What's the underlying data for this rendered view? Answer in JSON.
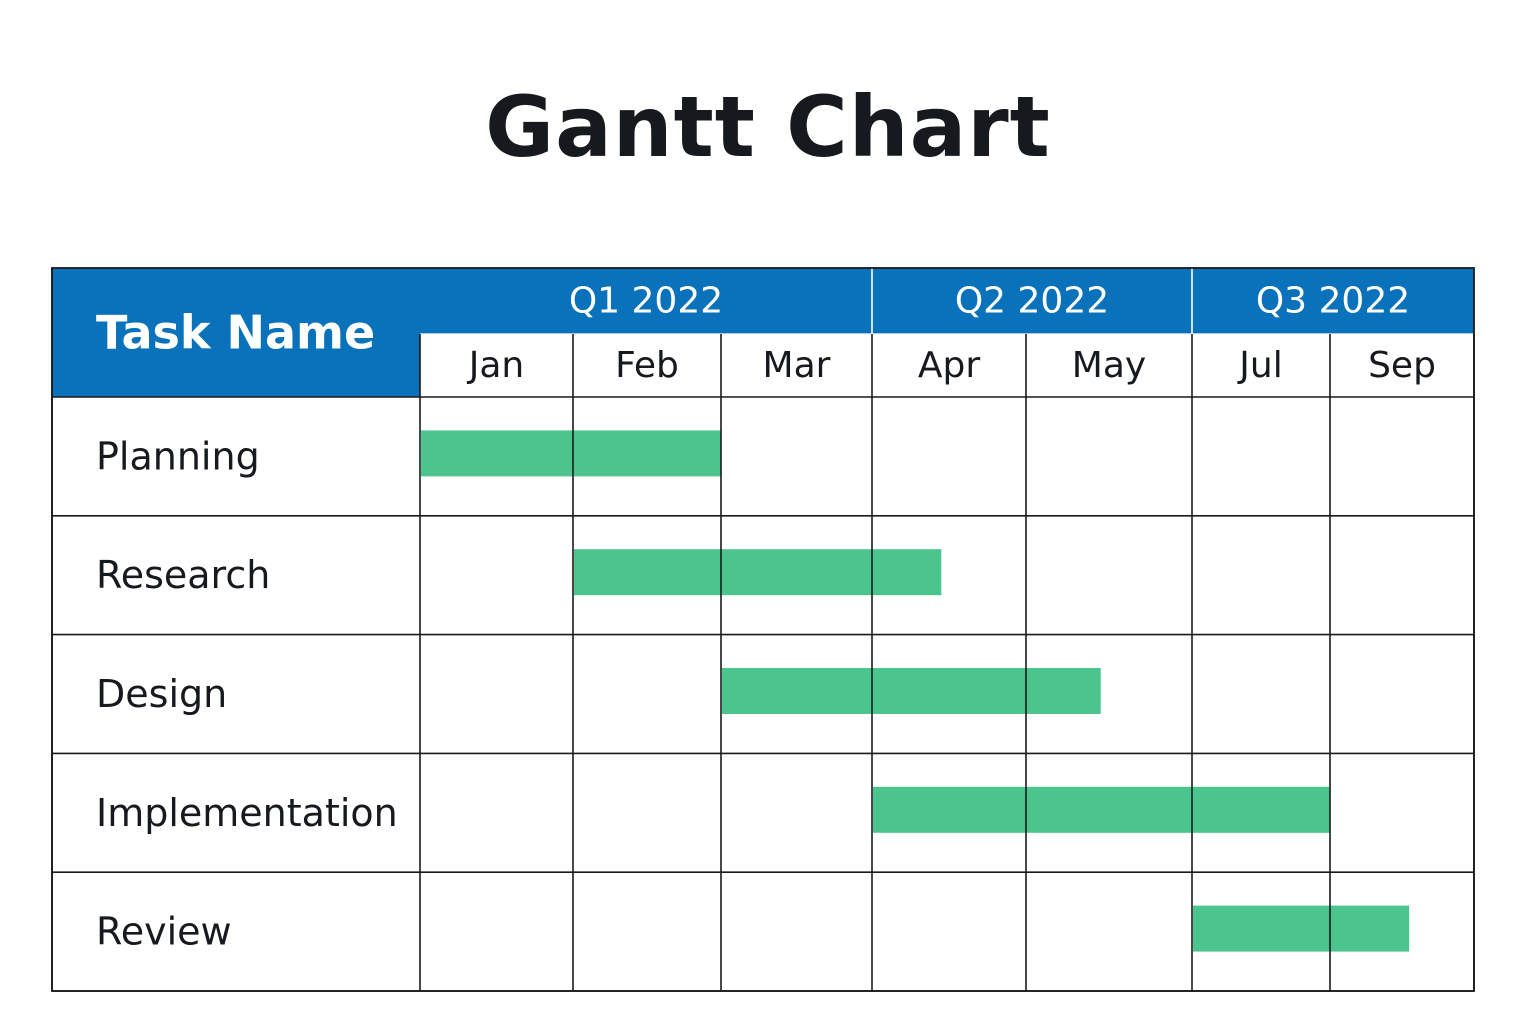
{
  "page": {
    "title": "Gantt Chart"
  },
  "chart_data": {
    "type": "gantt",
    "title": "Gantt Chart",
    "task_column_header": "Task Name",
    "quarters": [
      {
        "label": "Q1 2022",
        "months": [
          "Jan",
          "Feb",
          "Mar"
        ]
      },
      {
        "label": "Q2 2022",
        "months": [
          "Apr",
          "May"
        ]
      },
      {
        "label": "Q3 2022",
        "months": [
          "Jul",
          "Sep"
        ]
      }
    ],
    "tasks": [
      {
        "name": "Planning",
        "start_column": 0,
        "end_column": 2.0
      },
      {
        "name": "Research",
        "start_column": 1,
        "end_column": 3.45
      },
      {
        "name": "Design",
        "start_column": 2,
        "end_column": 4.45
      },
      {
        "name": "Implementation",
        "start_column": 3,
        "end_column": 6.0
      },
      {
        "name": "Review",
        "start_column": 5,
        "end_column": 6.55
      }
    ],
    "colors": {
      "header": "#0a72bb",
      "header_text": "#ffffff",
      "bar": "#4cc48e",
      "grid": "#1a1a1a"
    }
  }
}
